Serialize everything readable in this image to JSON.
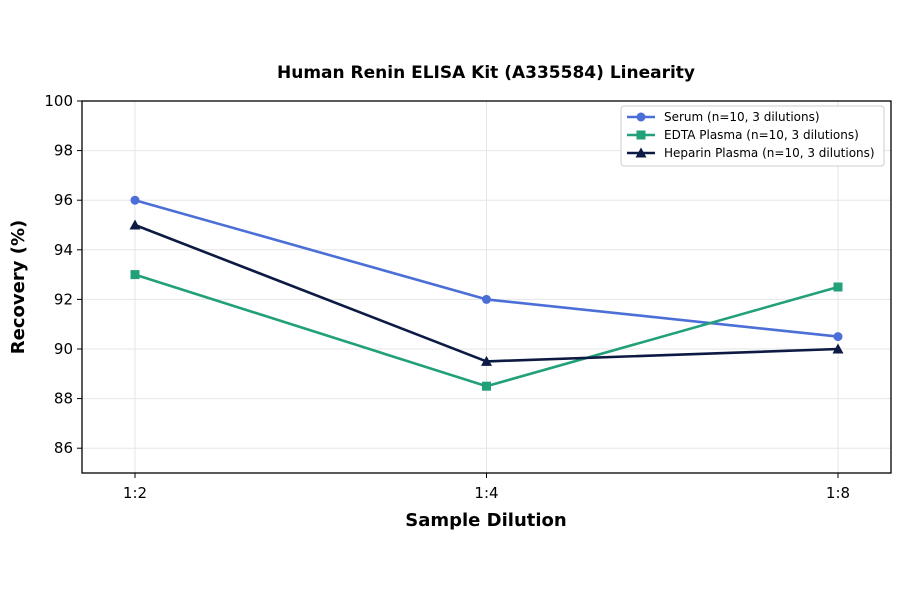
{
  "chart_data": {
    "type": "line",
    "title": "Human Renin ELISA Kit (A335584) Linearity",
    "xlabel": "Sample Dilution",
    "ylabel": "Recovery (%)",
    "categories": [
      "1:2",
      "1:4",
      "1:8"
    ],
    "ylim": [
      85,
      100
    ],
    "yticks": [
      86,
      88,
      90,
      92,
      94,
      96,
      98,
      100
    ],
    "grid": true,
    "legend_position": "top-right",
    "series": [
      {
        "name": "Serum (n=10, 3 dilutions)",
        "values": [
          96,
          92,
          90.5
        ],
        "color": "#4b6fd6",
        "marker": "circle"
      },
      {
        "name": "EDTA Plasma (n=10, 3 dilutions)",
        "values": [
          93,
          88.5,
          92.5
        ],
        "color": "#21a07a",
        "marker": "square"
      },
      {
        "name": "Heparin Plasma (n=10, 3 dilutions)",
        "values": [
          95,
          89.5,
          90
        ],
        "color": "#0d1b44",
        "marker": "triangle"
      }
    ]
  }
}
